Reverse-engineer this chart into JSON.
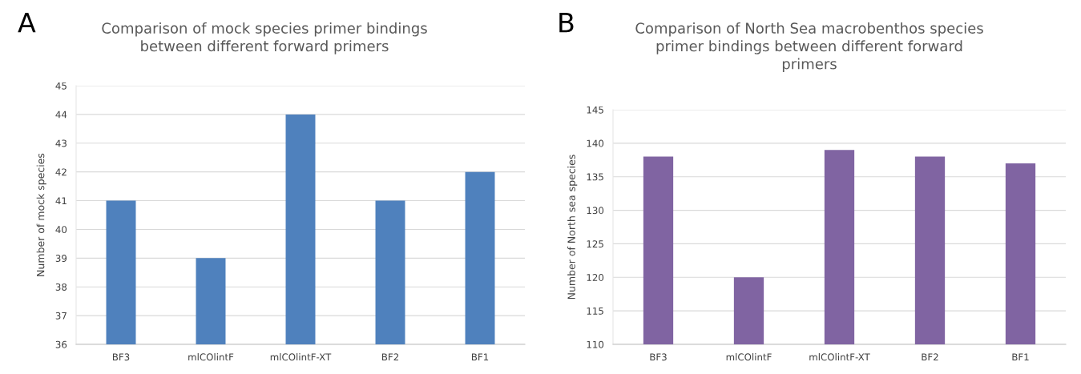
{
  "chart_data": [
    {
      "type": "bar",
      "title": "Comparison of mock species primer bindings\nbetween different forward primers",
      "ylabel": "Number of mock species",
      "annotations": [
        "A"
      ],
      "categories": [
        "BF3",
        "mlCOlintF",
        "mlCOlintF-XT",
        "BF2",
        "BF1"
      ],
      "values": [
        41,
        39,
        44,
        41,
        42
      ],
      "color": "#4f81bd",
      "ylim": [
        36,
        45
      ],
      "yticks": [
        36,
        37,
        38,
        39,
        40,
        41,
        42,
        43,
        44,
        45
      ],
      "grid": "y"
    },
    {
      "type": "bar",
      "title": "Comparison of North Sea macrobenthos species\nprimer bindings between different forward\nprimers",
      "ylabel": "Number of North sea species",
      "annotations": [
        "B"
      ],
      "categories": [
        "BF3",
        "mlCOlintF",
        "mlCOlintF-XT",
        "BF2",
        "BF1"
      ],
      "values": [
        138,
        120,
        139,
        138,
        137
      ],
      "color": "#8064a2",
      "ylim": [
        110,
        145
      ],
      "yticks": [
        110,
        115,
        120,
        125,
        130,
        135,
        140,
        145
      ],
      "grid": "y"
    }
  ]
}
